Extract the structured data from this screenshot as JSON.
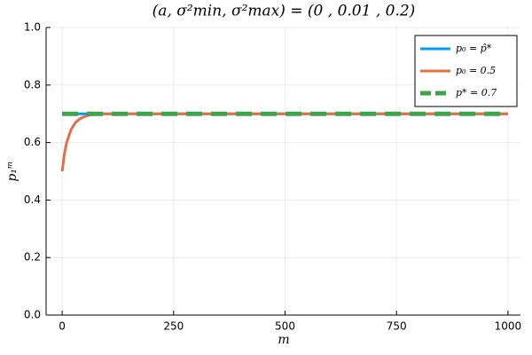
{
  "chart_data": {
    "type": "line",
    "title": "(a, σ²min, σ²max) = (0 , 0.01 , 0.2)",
    "x_label": "m",
    "y_label": "p₁ᵐ",
    "x": [
      0,
      5,
      10,
      20,
      30,
      40,
      50,
      60,
      80,
      100,
      200,
      300,
      400,
      500,
      600,
      700,
      800,
      900,
      1000
    ],
    "series": [
      {
        "name": "p₀ = p̂*",
        "color": "#009af9",
        "style": "solid",
        "values": [
          0.7,
          0.7,
          0.7,
          0.7,
          0.7,
          0.7,
          0.7,
          0.7,
          0.7,
          0.7,
          0.7,
          0.7,
          0.7,
          0.7,
          0.7,
          0.7,
          0.7,
          0.7,
          0.7
        ]
      },
      {
        "name": "p₀ = 0.5",
        "color": "#e26f46",
        "style": "solid",
        "values": [
          0.5,
          0.56,
          0.6,
          0.645,
          0.67,
          0.683,
          0.69,
          0.695,
          0.699,
          0.7,
          0.7,
          0.7,
          0.7,
          0.7,
          0.7,
          0.7,
          0.7,
          0.7,
          0.7
        ]
      },
      {
        "name": "p* = 0.7",
        "color": "#3da44d",
        "style": "dashed",
        "values": [
          0.7,
          0.7,
          0.7,
          0.7,
          0.7,
          0.7,
          0.7,
          0.7,
          0.7,
          0.7,
          0.7,
          0.7,
          0.7,
          0.7,
          0.7,
          0.7,
          0.7,
          0.7,
          0.7
        ]
      }
    ],
    "xlim": [
      -36,
      1028
    ],
    "xticks": [
      0,
      250,
      500,
      750,
      1000
    ],
    "ylim": [
      0,
      1
    ],
    "yticks": [
      {
        "value": 0,
        "label": "0.0"
      },
      0.2,
      0.4,
      0.6,
      0.8,
      {
        "value": 1,
        "label": "1.0"
      }
    ],
    "grid": true,
    "legend": "top-right"
  }
}
